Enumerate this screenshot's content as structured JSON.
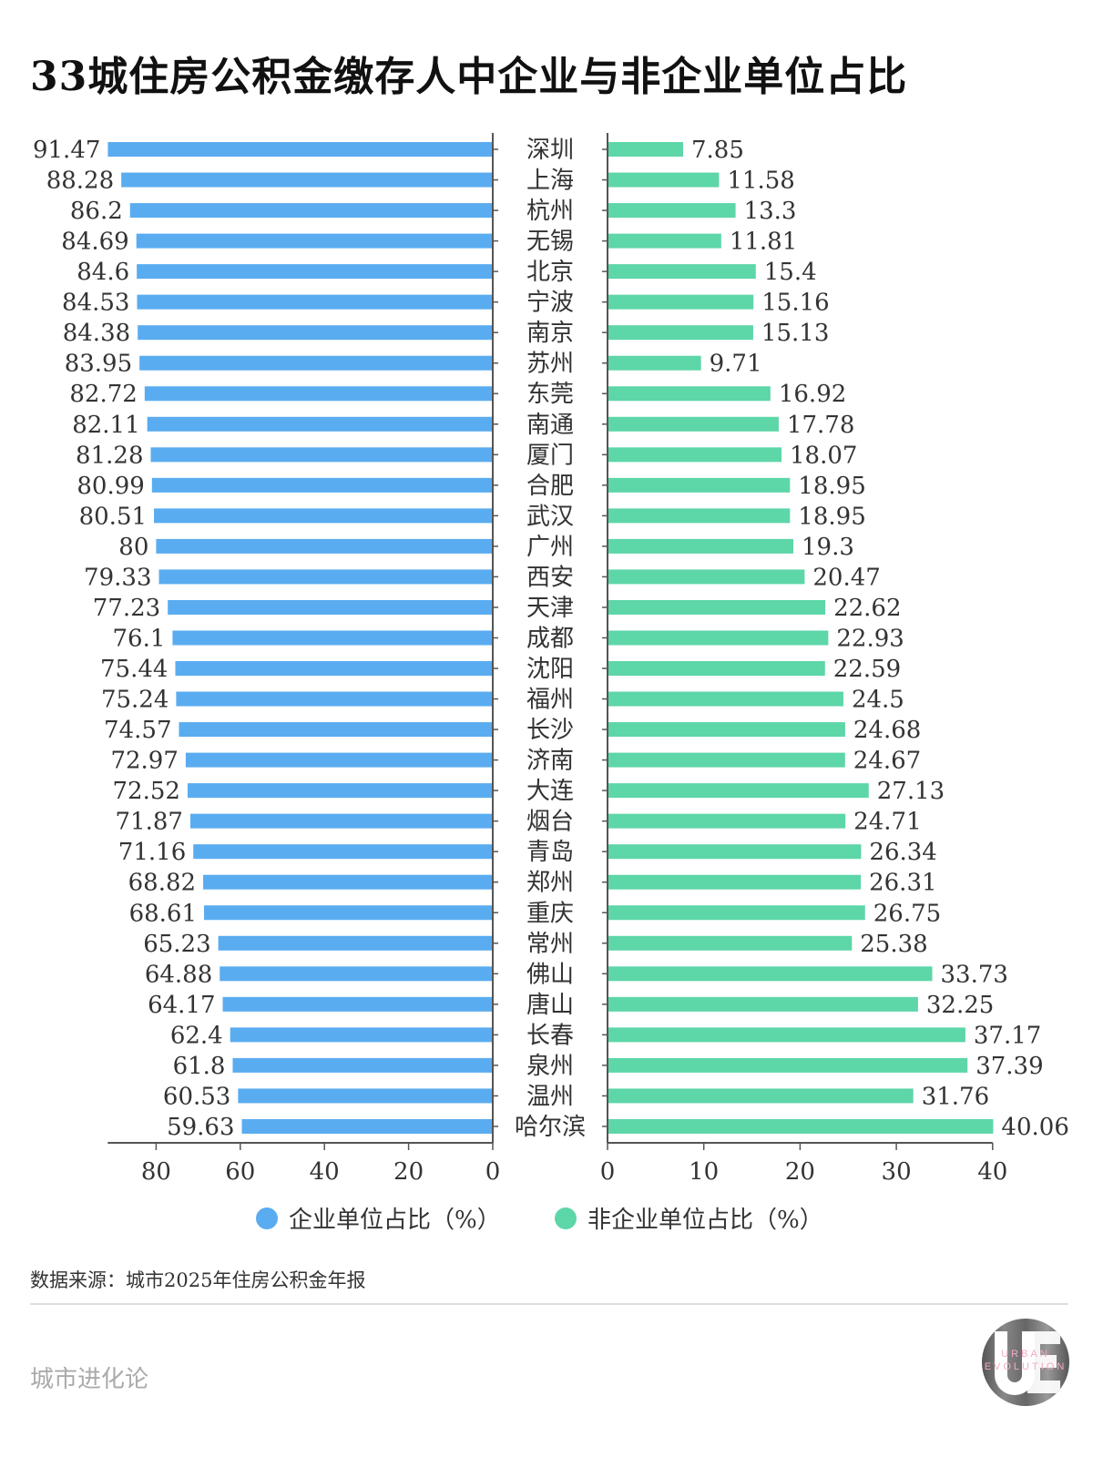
{
  "title": "33城住房公积金缴存人中企业与非企业单位占比",
  "chart_data": {
    "type": "bar",
    "layout": "butterfly horizontal bars",
    "categories": [
      "深圳",
      "上海",
      "杭州",
      "无锡",
      "北京",
      "宁波",
      "南京",
      "苏州",
      "东莞",
      "南通",
      "厦门",
      "合肥",
      "武汉",
      "广州",
      "西安",
      "天津",
      "成都",
      "沈阳",
      "福州",
      "长沙",
      "济南",
      "大连",
      "烟台",
      "青岛",
      "郑州",
      "重庆",
      "常州",
      "佛山",
      "唐山",
      "长春",
      "泉州",
      "温州",
      "哈尔滨"
    ],
    "series": [
      {
        "name": "企业单位占比（%）",
        "color": "#5aacf0",
        "side": "left",
        "xlim": [
          0,
          91.5
        ],
        "ticks": [
          80,
          60,
          40,
          20,
          0
        ],
        "values": [
          91.47,
          88.28,
          86.2,
          84.69,
          84.6,
          84.53,
          84.38,
          83.95,
          82.72,
          82.11,
          81.28,
          80.99,
          80.51,
          80,
          79.33,
          77.23,
          76.1,
          75.44,
          75.24,
          74.57,
          72.97,
          72.52,
          71.87,
          71.16,
          68.82,
          68.61,
          65.23,
          64.88,
          64.17,
          62.4,
          61.8,
          60.53,
          59.63
        ]
      },
      {
        "name": "非企业单位占比（%）",
        "color": "#5dd6a8",
        "side": "right",
        "xlim": [
          0,
          40
        ],
        "ticks": [
          0,
          10,
          20,
          30,
          40
        ],
        "values": [
          7.85,
          11.58,
          13.3,
          11.81,
          15.4,
          15.16,
          15.13,
          9.71,
          16.92,
          17.78,
          18.07,
          18.95,
          18.95,
          19.3,
          20.47,
          22.62,
          22.93,
          22.59,
          24.5,
          24.68,
          24.67,
          27.13,
          24.71,
          26.34,
          26.31,
          26.75,
          25.38,
          33.73,
          32.25,
          37.17,
          37.39,
          31.76,
          40.06
        ]
      }
    ],
    "legend_position": "bottom",
    "grid": false
  },
  "source": "数据来源：城市2025年住房公积金年报",
  "footer": "城市进化论",
  "logo": {
    "letters": "UE",
    "text": "URBAN EVOLUTION"
  }
}
